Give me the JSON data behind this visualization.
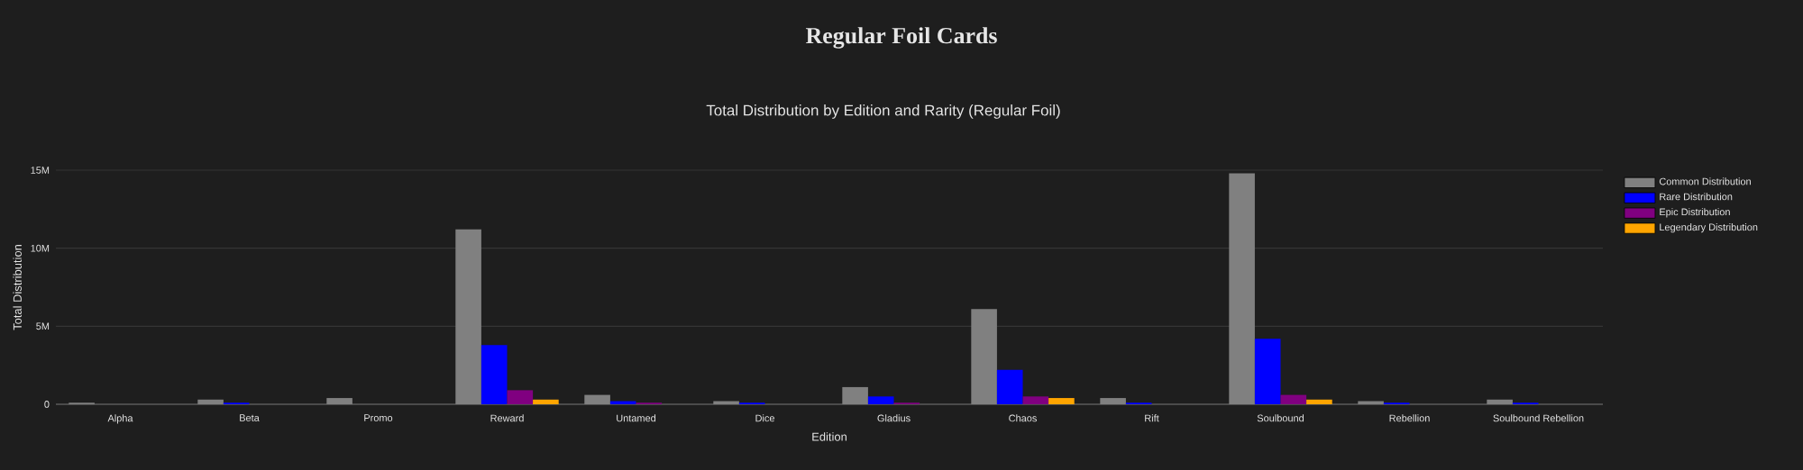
{
  "chart_data": {
    "type": "bar",
    "title": "Regular Foil Cards",
    "subtitle": "Total Distribution by Edition and Rarity (Regular Foil)",
    "xlabel": "Edition",
    "ylabel": "Total Distribution",
    "categories": [
      "Alpha",
      "Beta",
      "Promo",
      "Reward",
      "Untamed",
      "Dice",
      "Gladius",
      "Chaos",
      "Rift",
      "Soulbound",
      "Rebellion",
      "Soulbound Rebellion"
    ],
    "series": [
      {
        "name": "Common Distribution",
        "color": "#808080",
        "values": [
          100000,
          300000,
          400000,
          11200000,
          600000,
          200000,
          1100000,
          6100000,
          400000,
          14800000,
          200000,
          300000
        ]
      },
      {
        "name": "Rare Distribution",
        "color": "#0000ff",
        "values": [
          0,
          100000,
          0,
          3800000,
          200000,
          100000,
          500000,
          2200000,
          100000,
          4200000,
          100000,
          100000
        ]
      },
      {
        "name": "Epic Distribution",
        "color": "#800080",
        "values": [
          0,
          0,
          0,
          900000,
          100000,
          0,
          100000,
          500000,
          0,
          600000,
          0,
          0
        ]
      },
      {
        "name": "Legendary Distribution",
        "color": "#ffa500",
        "values": [
          0,
          0,
          0,
          300000,
          0,
          0,
          0,
          400000,
          0,
          300000,
          0,
          0
        ]
      }
    ],
    "ylim": [
      0,
      15000000
    ],
    "yticks": [
      0,
      {
        "value": 5000000,
        "label": "5M"
      },
      {
        "value": 10000000,
        "label": "10M"
      },
      {
        "value": 15000000,
        "label": "15M"
      }
    ],
    "grid": "y",
    "legend": "top right"
  }
}
